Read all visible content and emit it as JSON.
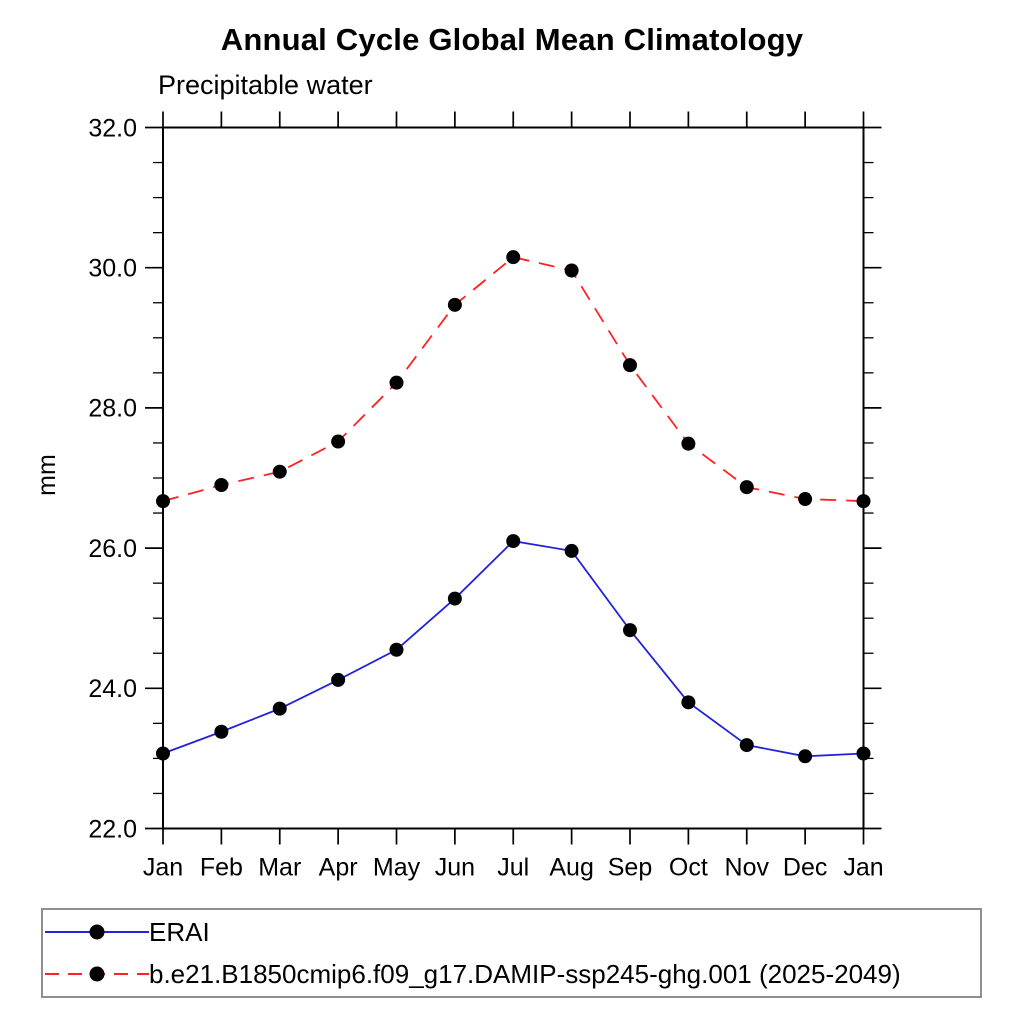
{
  "header": {
    "title": "Annual Cycle Global Mean Climatology",
    "subtitle": "Precipitable water",
    "ylabel": "mm"
  },
  "chart_data": {
    "type": "line",
    "title": "Annual Cycle Global Mean Climatology",
    "subtitle": "Precipitable water",
    "ylabel": "mm",
    "x_categories": [
      "Jan",
      "Feb",
      "Mar",
      "Apr",
      "May",
      "Jun",
      "Jul",
      "Aug",
      "Sep",
      "Oct",
      "Nov",
      "Dec",
      "Jan"
    ],
    "ylim": [
      22.0,
      32.0
    ],
    "ytick_major": [
      22.0,
      24.0,
      26.0,
      28.0,
      30.0,
      32.0
    ],
    "ytick_minor_step": 0.5,
    "grid": false,
    "legend_position": "bottom-left",
    "marker_color": "#000000",
    "series": [
      {
        "name": "ERAI",
        "style": "solid",
        "color": "#2222dd",
        "values": [
          23.07,
          23.38,
          23.71,
          24.12,
          24.55,
          25.28,
          26.1,
          25.96,
          24.83,
          23.8,
          23.19,
          23.03,
          23.07
        ]
      },
      {
        "name": "b.e21.B1850cmip6.f09_g17.DAMIP-ssp245-ghg.001 (2025-2049)",
        "style": "dashed",
        "color": "#ff2222",
        "values": [
          26.67,
          26.9,
          27.09,
          27.52,
          28.36,
          29.47,
          30.15,
          29.96,
          28.61,
          27.49,
          26.87,
          26.7,
          26.67
        ]
      }
    ]
  }
}
